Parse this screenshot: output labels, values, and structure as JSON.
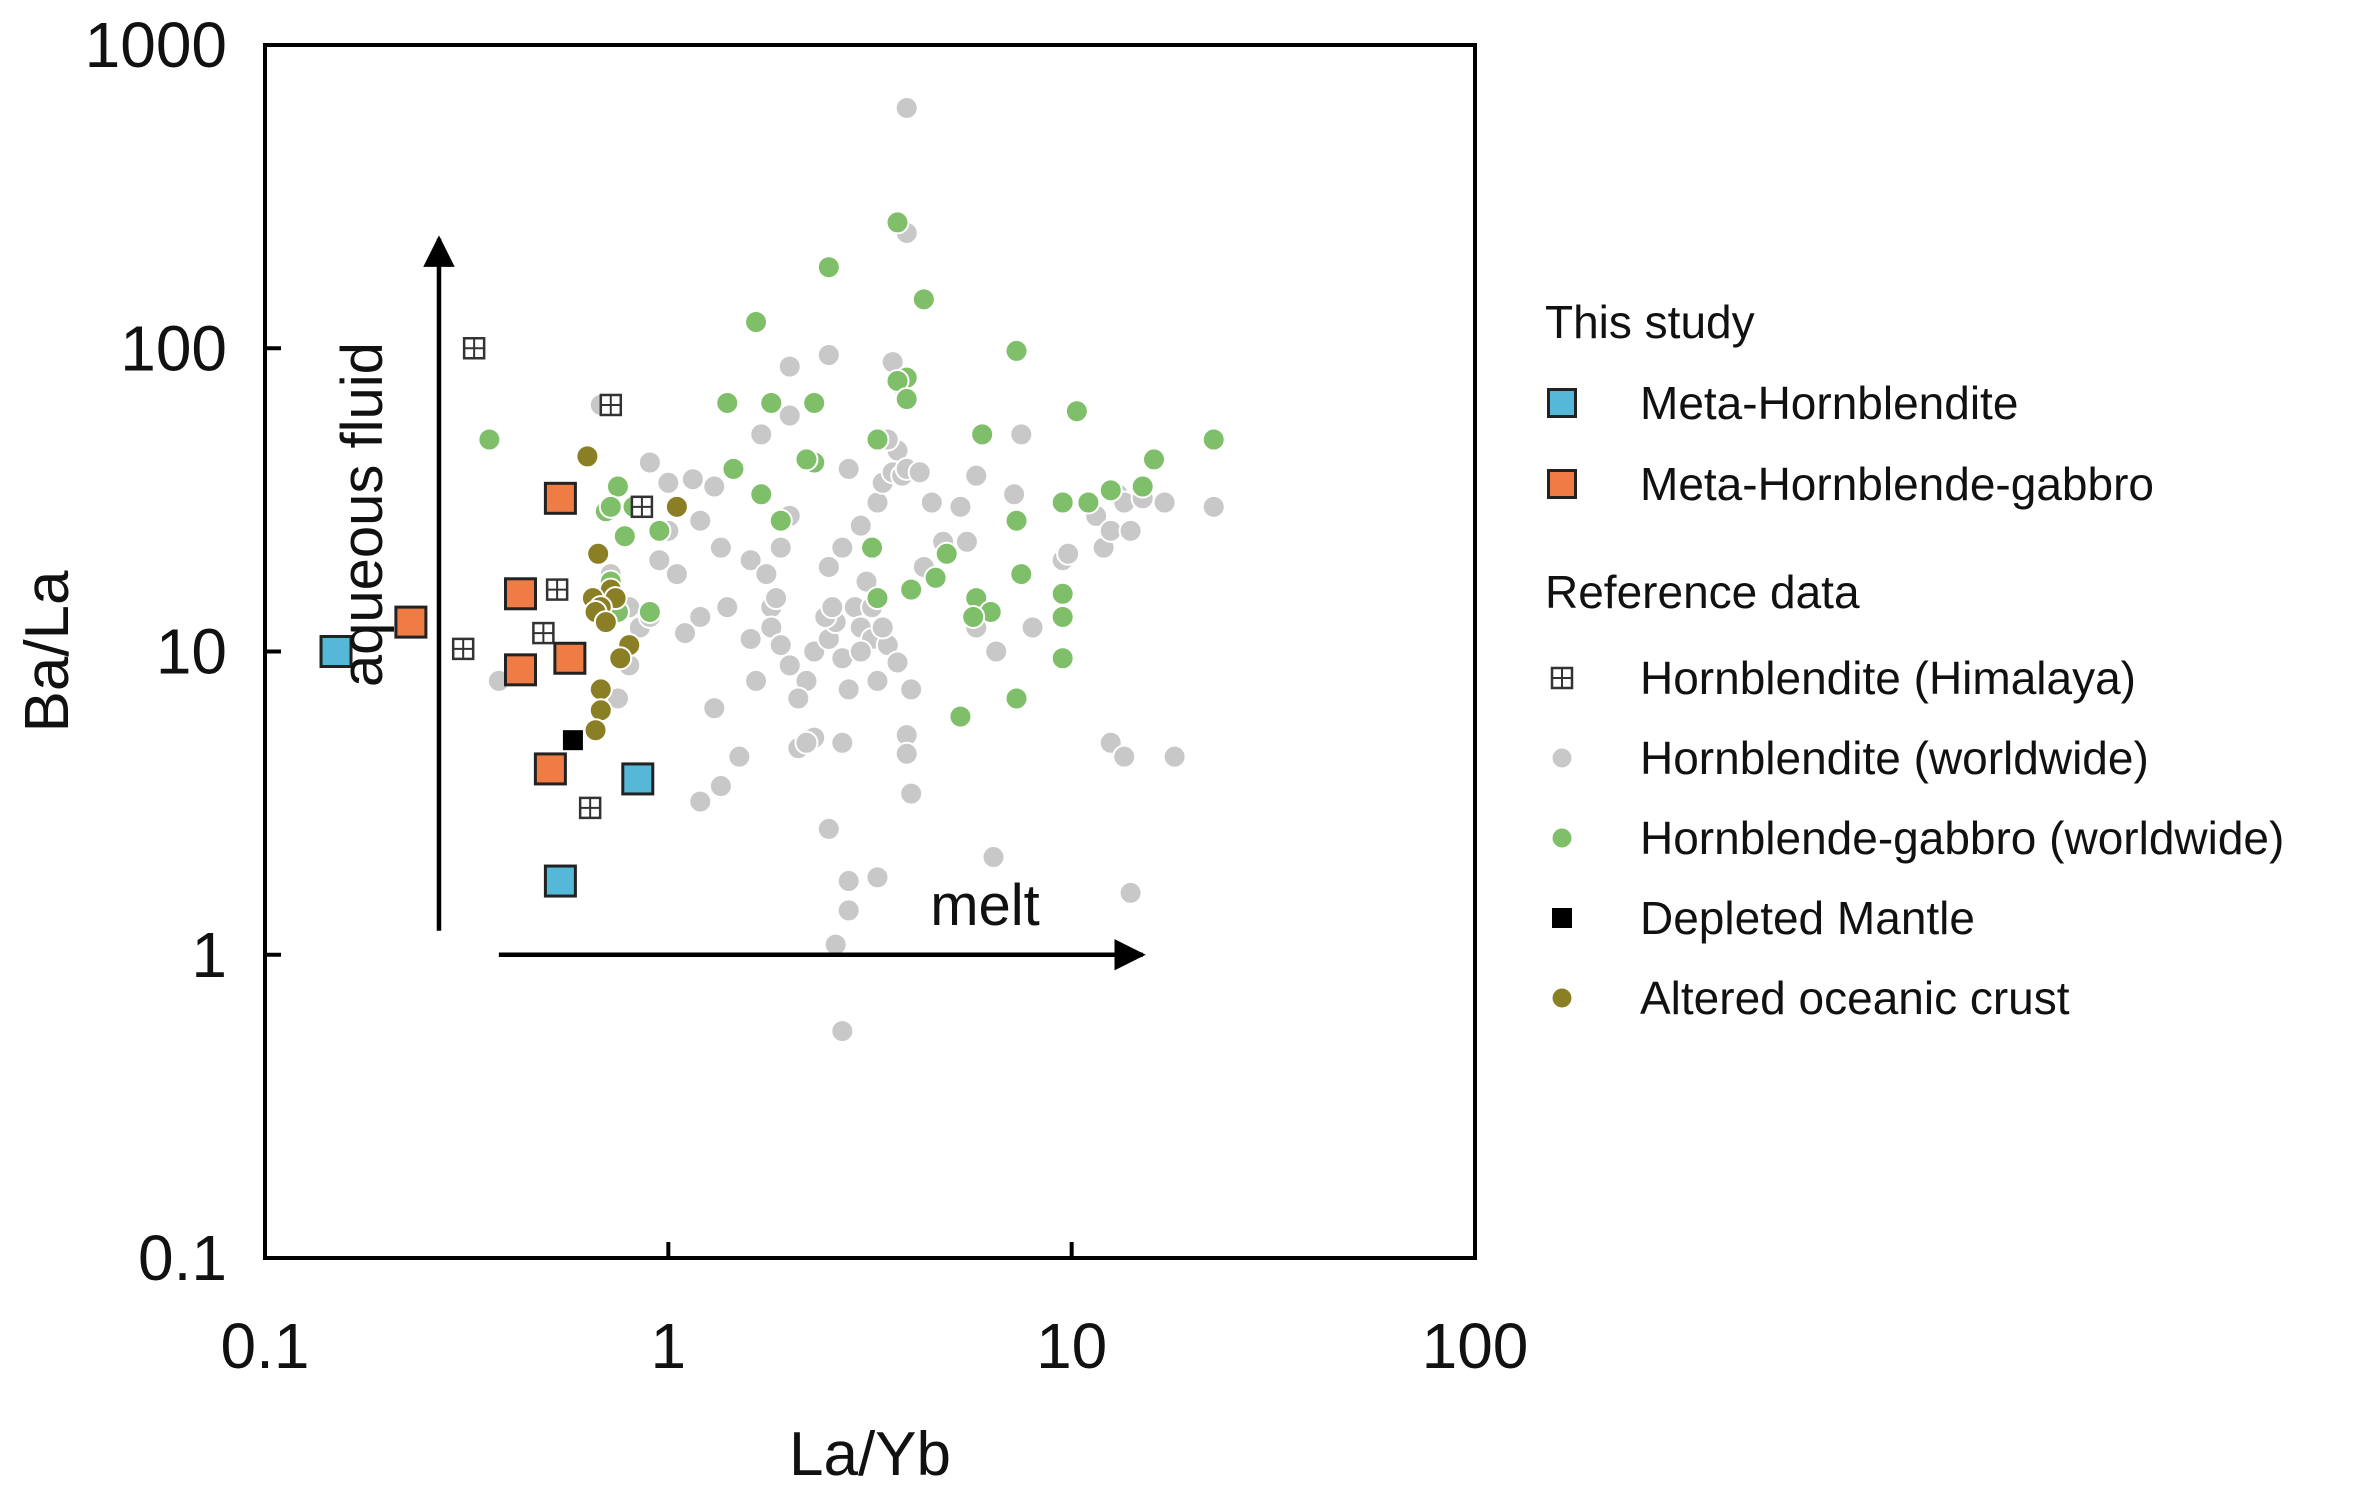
{
  "chart_data": {
    "type": "scatter",
    "xscale": "log",
    "yscale": "log",
    "xlabel": "La/Yb",
    "ylabel": "Ba/La",
    "xlim": [
      0.1,
      100
    ],
    "ylim": [
      0.1,
      1000
    ],
    "grid": false,
    "legend_position": "right",
    "xtick_values": [
      0.1,
      1,
      10,
      100
    ],
    "ytick_values": [
      0.1,
      1,
      10,
      100,
      1000
    ],
    "xtick_labels": [
      "0.1",
      "1",
      "10",
      "100"
    ],
    "ytick_labels": [
      "0.1",
      "1",
      "10",
      "100",
      "1000"
    ],
    "annotations": [
      {
        "text": "aqueous fluid",
        "arrow_start": [
          0.27,
          1.2
        ],
        "arrow_end": [
          0.27,
          230
        ]
      },
      {
        "text": "melt",
        "arrow_start": [
          0.38,
          1.0
        ],
        "arrow_end": [
          15,
          1.0
        ]
      }
    ],
    "legend_groups": [
      {
        "title": "This study",
        "entries": [
          {
            "label": "Meta-Hornblendite",
            "series": "meta_hornblendite"
          },
          {
            "label": "Meta-Hornblende-gabbro",
            "series": "meta_hornblende_gabbro"
          }
        ]
      },
      {
        "title": "Reference data",
        "entries": [
          {
            "label": "Hornblendite (Himalaya)",
            "series": "hornblendite_himalaya"
          },
          {
            "label": "Hornblendite (worldwide)",
            "series": "hornblendite_worldwide"
          },
          {
            "label": "Hornblende-gabbro (worldwide)",
            "series": "hornblende_gabbro_worldwide"
          },
          {
            "label": "Depleted Mantle",
            "series": "depleted_mantle"
          },
          {
            "label": "Altered oceanic crust",
            "series": "altered_oceanic_crust"
          }
        ]
      }
    ],
    "series": [
      {
        "name": "Hornblendite (worldwide)",
        "key": "hornblendite_worldwide",
        "marker": "circle",
        "color": "#c8c8c8",
        "points": [
          [
            3.9,
            620
          ],
          [
            3.9,
            240
          ],
          [
            2.5,
            95
          ],
          [
            2.0,
            87
          ],
          [
            3.6,
            90
          ],
          [
            3.8,
            75
          ],
          [
            3.7,
            46
          ],
          [
            1.7,
            52
          ],
          [
            2.0,
            60
          ],
          [
            0.68,
            65
          ],
          [
            0.9,
            42
          ],
          [
            1.0,
            36
          ],
          [
            1.15,
            37
          ],
          [
            1.3,
            35
          ],
          [
            1.05,
            30
          ],
          [
            1.0,
            25
          ],
          [
            1.2,
            27
          ],
          [
            0.95,
            20
          ],
          [
            1.05,
            18
          ],
          [
            0.8,
            14
          ],
          [
            0.85,
            12
          ],
          [
            1.1,
            11.5
          ],
          [
            1.2,
            13
          ],
          [
            1.35,
            22
          ],
          [
            1.4,
            14
          ],
          [
            1.6,
            20
          ],
          [
            1.75,
            18
          ],
          [
            1.8,
            14
          ],
          [
            1.9,
            22
          ],
          [
            2.0,
            28
          ],
          [
            1.8,
            12
          ],
          [
            1.9,
            10.5
          ],
          [
            2.0,
            9
          ],
          [
            1.65,
            8
          ],
          [
            2.2,
            8
          ],
          [
            2.3,
            10
          ],
          [
            2.5,
            11
          ],
          [
            2.6,
            12.5
          ],
          [
            2.7,
            9.5
          ],
          [
            2.8,
            7.5
          ],
          [
            2.9,
            14
          ],
          [
            3.0,
            12
          ],
          [
            3.2,
            11
          ],
          [
            3.3,
            8
          ],
          [
            3.5,
            10.5
          ],
          [
            3.7,
            9.2
          ],
          [
            4.0,
            7.5
          ],
          [
            3.1,
            17
          ],
          [
            2.5,
            19
          ],
          [
            2.7,
            22
          ],
          [
            3.0,
            26
          ],
          [
            3.3,
            31
          ],
          [
            3.4,
            36
          ],
          [
            3.6,
            39
          ],
          [
            3.8,
            38
          ],
          [
            3.9,
            40
          ],
          [
            4.2,
            39
          ],
          [
            4.5,
            31
          ],
          [
            4.8,
            23
          ],
          [
            5.5,
            23
          ],
          [
            5.8,
            12
          ],
          [
            6.5,
            10
          ],
          [
            7.2,
            33
          ],
          [
            7.5,
            52
          ],
          [
            8.0,
            12
          ],
          [
            9.5,
            20
          ],
          [
            9.8,
            21
          ],
          [
            11.5,
            28
          ],
          [
            12.0,
            22
          ],
          [
            12.5,
            25
          ],
          [
            13.0,
            33
          ],
          [
            13.5,
            31
          ],
          [
            14.0,
            25
          ],
          [
            15.0,
            32
          ],
          [
            17.0,
            31
          ],
          [
            22.5,
            30
          ],
          [
            12.5,
            5
          ],
          [
            13.5,
            4.5
          ],
          [
            18.0,
            4.5
          ],
          [
            1.3,
            6.5
          ],
          [
            1.5,
            4.5
          ],
          [
            1.35,
            3.6
          ],
          [
            1.2,
            3.2
          ],
          [
            2.1,
            4.8
          ],
          [
            2.3,
            5.2
          ],
          [
            2.7,
            5.0
          ],
          [
            3.9,
            5.3
          ],
          [
            3.9,
            4.6
          ],
          [
            4.0,
            3.4
          ],
          [
            2.5,
            2.6
          ],
          [
            2.8,
            1.75
          ],
          [
            3.3,
            1.8
          ],
          [
            2.8,
            1.4
          ],
          [
            2.6,
            1.08
          ],
          [
            6.4,
            2.1
          ],
          [
            2.7,
            0.56
          ],
          [
            14.0,
            1.6
          ],
          [
            0.8,
            9
          ],
          [
            0.75,
            7
          ],
          [
            0.38,
            8
          ],
          [
            0.72,
            18
          ],
          [
            0.9,
            13
          ],
          [
            2.2,
            5
          ],
          [
            2.1,
            7
          ],
          [
            2.45,
            13
          ],
          [
            2.55,
            14
          ],
          [
            3.2,
            14
          ],
          [
            3.4,
            12
          ],
          [
            3.0,
            10
          ],
          [
            4.3,
            19
          ],
          [
            5.3,
            30
          ],
          [
            5.8,
            38
          ],
          [
            2.8,
            40
          ],
          [
            3.5,
            50
          ],
          [
            1.6,
            11
          ],
          [
            1.85,
            15
          ]
        ]
      },
      {
        "name": "Hornblende-gabbro (worldwide)",
        "key": "hornblende_gabbro_worldwide",
        "marker": "circle",
        "color": "#7fbf6a",
        "points": [
          [
            3.7,
            260
          ],
          [
            2.5,
            185
          ],
          [
            4.3,
            145
          ],
          [
            1.65,
            122
          ],
          [
            7.3,
            98
          ],
          [
            3.9,
            80
          ],
          [
            3.7,
            78
          ],
          [
            3.9,
            68
          ],
          [
            1.4,
            66
          ],
          [
            1.8,
            66
          ],
          [
            2.3,
            66
          ],
          [
            10.3,
            62
          ],
          [
            6.0,
            52
          ],
          [
            3.3,
            50
          ],
          [
            22.5,
            50
          ],
          [
            0.36,
            50
          ],
          [
            2.3,
            42
          ],
          [
            1.45,
            40
          ],
          [
            2.2,
            43
          ],
          [
            16.0,
            43
          ],
          [
            0.75,
            35
          ],
          [
            0.7,
            29
          ],
          [
            0.72,
            30
          ],
          [
            1.7,
            33
          ],
          [
            12.5,
            34
          ],
          [
            11.0,
            31
          ],
          [
            9.5,
            31
          ],
          [
            15.0,
            35
          ],
          [
            0.78,
            24
          ],
          [
            1.9,
            27
          ],
          [
            7.3,
            27
          ],
          [
            0.72,
            17
          ],
          [
            3.2,
            22
          ],
          [
            4.9,
            21
          ],
          [
            0.75,
            13.5
          ],
          [
            0.9,
            13.5
          ],
          [
            4.6,
            17.5
          ],
          [
            4.0,
            16
          ],
          [
            5.8,
            15
          ],
          [
            6.3,
            13.5
          ],
          [
            5.7,
            13
          ],
          [
            7.5,
            18
          ],
          [
            9.5,
            15.5
          ],
          [
            9.5,
            13
          ],
          [
            9.5,
            9.5
          ],
          [
            3.3,
            15
          ],
          [
            7.3,
            7
          ],
          [
            5.3,
            6.1
          ],
          [
            0.82,
            30
          ],
          [
            0.95,
            25
          ]
        ]
      },
      {
        "name": "Altered oceanic crust",
        "key": "altered_oceanic_crust",
        "marker": "circle",
        "color": "#8a7f24",
        "points": [
          [
            0.63,
            44
          ],
          [
            1.05,
            30
          ],
          [
            0.67,
            21
          ],
          [
            0.72,
            16
          ],
          [
            0.65,
            15
          ],
          [
            0.74,
            15
          ],
          [
            0.68,
            14
          ],
          [
            0.66,
            13.5
          ],
          [
            0.7,
            12.5
          ],
          [
            0.8,
            10.5
          ],
          [
            0.76,
            9.5
          ],
          [
            0.68,
            7.5
          ],
          [
            0.68,
            6.4
          ],
          [
            0.66,
            5.5
          ]
        ]
      },
      {
        "name": "Hornblendite (Himalaya)",
        "key": "hornblendite_himalaya",
        "marker": "boxgrid",
        "color": "#333333",
        "points": [
          [
            0.33,
            100
          ],
          [
            0.72,
            65
          ],
          [
            0.86,
            30
          ],
          [
            0.53,
            16
          ],
          [
            0.49,
            11.5
          ],
          [
            0.31,
            10.2
          ],
          [
            0.64,
            3.05
          ]
        ]
      },
      {
        "name": "Depleted Mantle",
        "key": "depleted_mantle",
        "marker": "square",
        "color": "#000000",
        "points": [
          [
            0.58,
            5.1
          ]
        ]
      },
      {
        "name": "Meta-Hornblendite",
        "key": "meta_hornblendite",
        "marker": "square_big",
        "color": "#55b8d8",
        "points": [
          [
            0.15,
            10
          ],
          [
            0.84,
            3.8
          ],
          [
            0.54,
            1.75
          ]
        ]
      },
      {
        "name": "Meta-Hornblende-gabbro",
        "key": "meta_hornblende_gabbro",
        "marker": "square_big",
        "color": "#f07c45",
        "points": [
          [
            0.23,
            12.5
          ],
          [
            0.54,
            32
          ],
          [
            0.43,
            15.5
          ],
          [
            0.43,
            8.7
          ],
          [
            0.57,
            9.5
          ],
          [
            0.51,
            4.1
          ]
        ]
      }
    ]
  }
}
